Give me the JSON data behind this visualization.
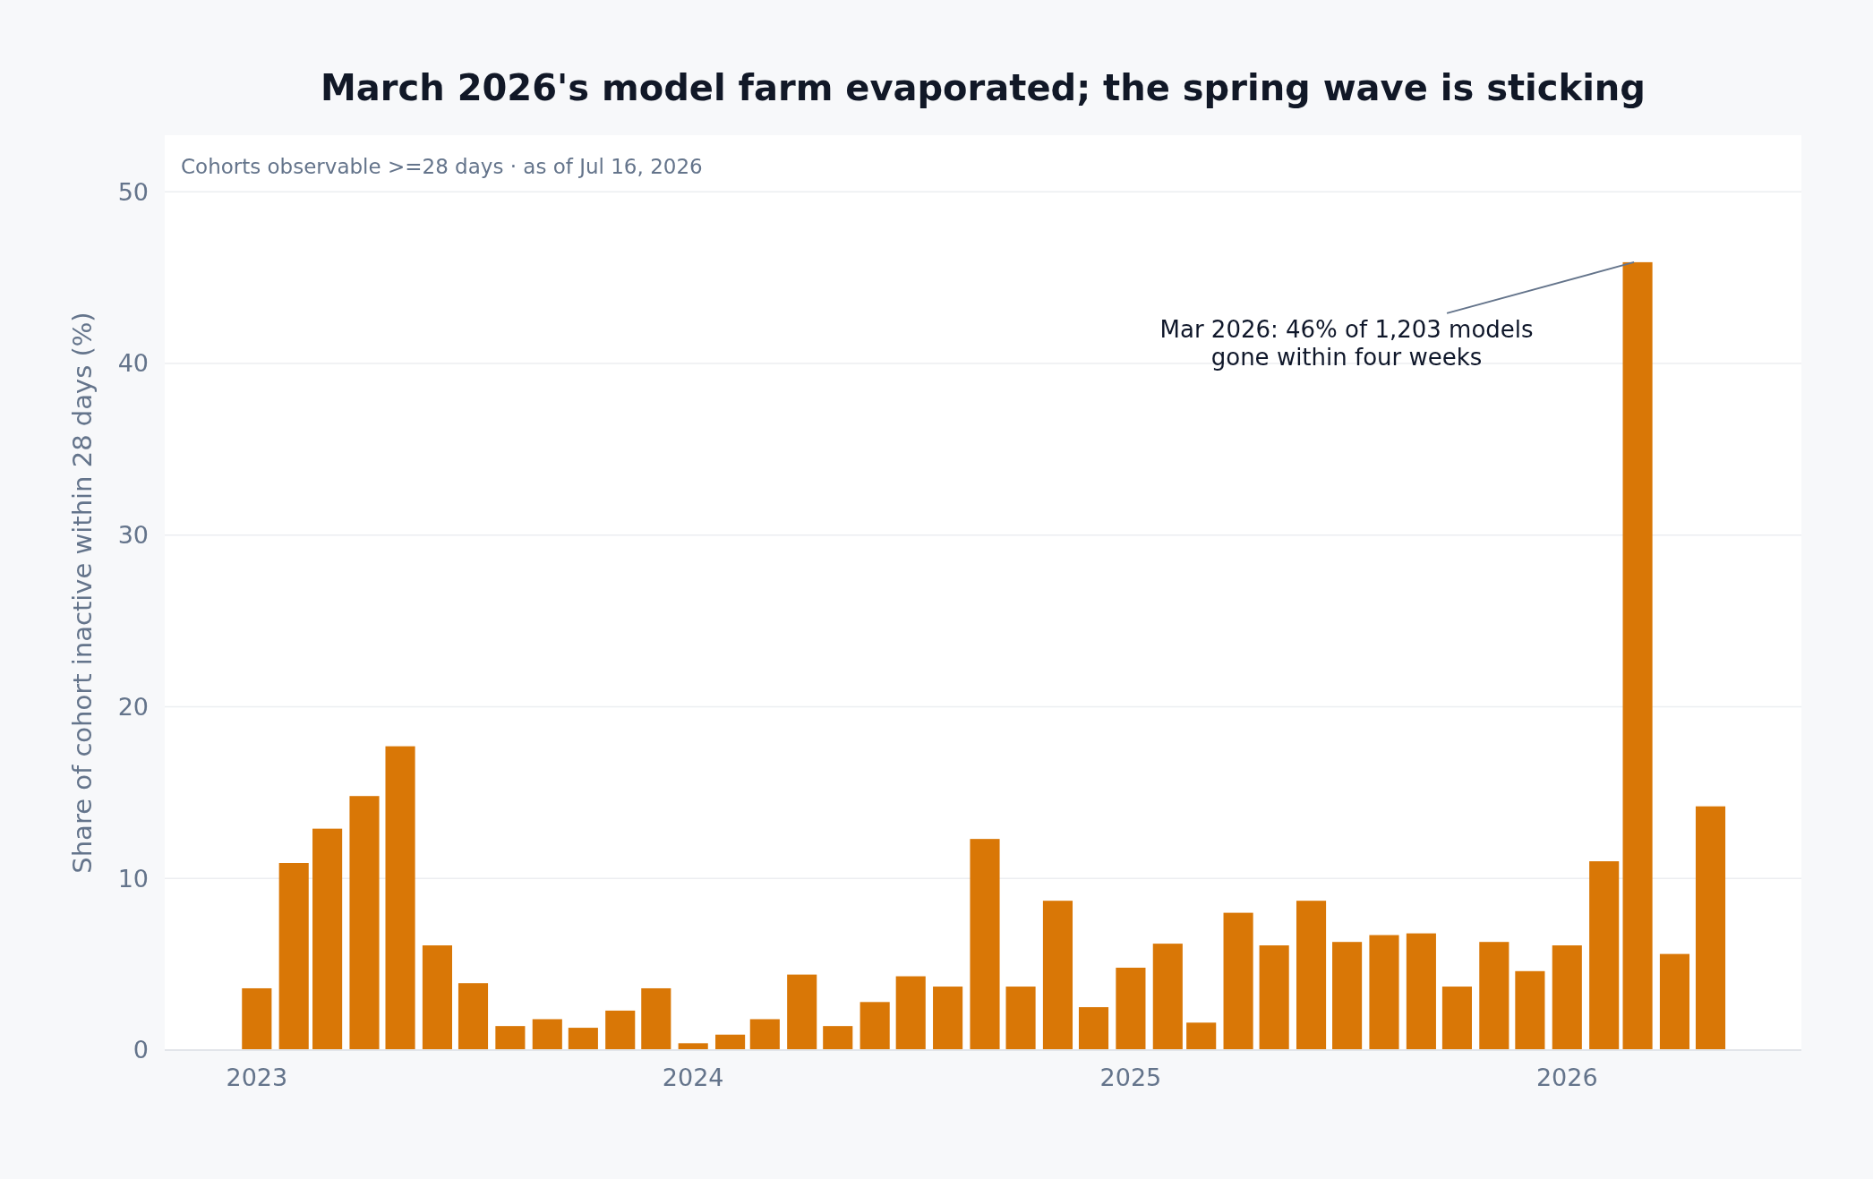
{
  "chart_data": {
    "type": "bar",
    "title": "March 2026's model farm evaporated; the spring wave is sticking",
    "subtitle": "Cohorts observable >=28 days · as of Jul 16, 2026",
    "ylabel": "Share of cohort inactive within 28 days (%)",
    "x": [
      "2023-01",
      "2023-02",
      "2023-03",
      "2023-04",
      "2023-05",
      "2023-06",
      "2023-07",
      "2023-08",
      "2023-09",
      "2023-10",
      "2023-11",
      "2023-12",
      "2024-01",
      "2024-02",
      "2024-03",
      "2024-04",
      "2024-05",
      "2024-06",
      "2024-07",
      "2024-08",
      "2024-09",
      "2024-10",
      "2024-11",
      "2024-12",
      "2025-01",
      "2025-02",
      "2025-03",
      "2025-04",
      "2025-05",
      "2025-06",
      "2025-07",
      "2025-08",
      "2025-09",
      "2025-10",
      "2025-11",
      "2025-12",
      "2026-01",
      "2026-02",
      "2026-03",
      "2026-04",
      "2026-05"
    ],
    "values": [
      3.6,
      10.9,
      12.9,
      14.8,
      17.7,
      6.1,
      3.9,
      1.4,
      1.8,
      1.3,
      2.3,
      3.6,
      0.4,
      0.9,
      1.8,
      4.4,
      1.4,
      2.8,
      4.3,
      3.7,
      12.3,
      3.7,
      8.7,
      2.5,
      4.8,
      6.2,
      1.6,
      8.0,
      6.1,
      8.7,
      6.3,
      6.7,
      6.8,
      3.7,
      6.3,
      4.6,
      6.1,
      11.0,
      45.9,
      5.6,
      14.2
    ],
    "color": "#d97706",
    "xlim": [
      "2022-10-16",
      "2026-07-16"
    ],
    "xticks": [
      "2023",
      "2024",
      "2025",
      "2026"
    ],
    "ylim": [
      0,
      53.3
    ],
    "yticks": [
      0,
      10,
      20,
      30,
      40,
      50
    ],
    "grid": "y",
    "annotations": [
      {
        "text": "Mar 2026: 46% of 1,203 models\ngone within four weeks",
        "x": "2026-03",
        "y": 45.9
      }
    ]
  }
}
